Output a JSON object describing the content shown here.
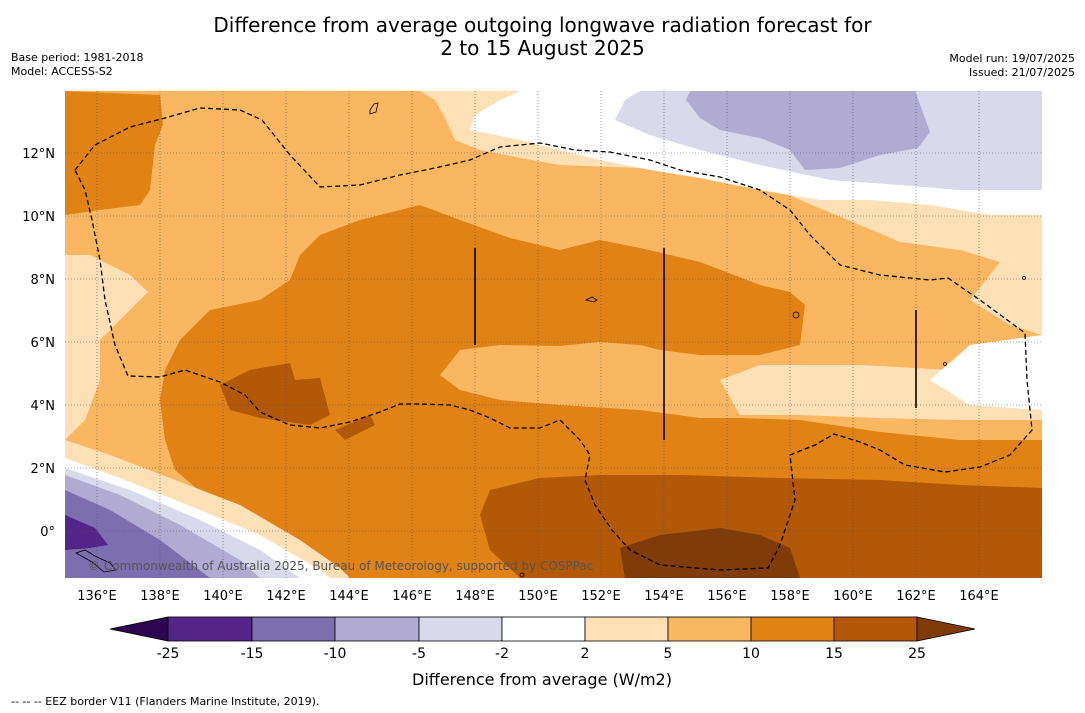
{
  "title_line1": "Difference from average outgoing longwave radiation forecast for",
  "title_line2": "2 to 15 August 2025",
  "meta": {
    "base_period": "Base period: 1981-2018",
    "model": "Model: ACCESS-S2",
    "model_run": "Model run: 19/07/2025",
    "issued": "Issued: 21/07/2025"
  },
  "copyright": "© Commonwealth of Australia 2025, Bureau of Meteorology, supported by COSPPac",
  "footer": "--  --  -- EEZ border V11 (Flanders Marine Institute, 2019).",
  "map": {
    "lon_labels": [
      "136°E",
      "138°E",
      "140°E",
      "142°E",
      "144°E",
      "146°E",
      "148°E",
      "150°E",
      "152°E",
      "154°E",
      "156°E",
      "158°E",
      "160°E",
      "162°E",
      "164°E"
    ],
    "lat_labels": [
      "12°N",
      "10°N",
      "8°N",
      "6°N",
      "4°N",
      "2°N",
      "0°"
    ]
  },
  "legend": {
    "title": "Difference from average (W/m2)",
    "ticks": [
      "-25",
      "-15",
      "-10",
      "-5",
      "-2",
      "2",
      "5",
      "10",
      "15",
      "25"
    ],
    "colors": [
      "#2d0450",
      "#542588",
      "#7c6eaf",
      "#b1aad2",
      "#d8d9eb",
      "#ffffff",
      "#fee0b6",
      "#fbb661",
      "#e08214",
      "#b35806",
      "#7f3b08"
    ]
  }
}
